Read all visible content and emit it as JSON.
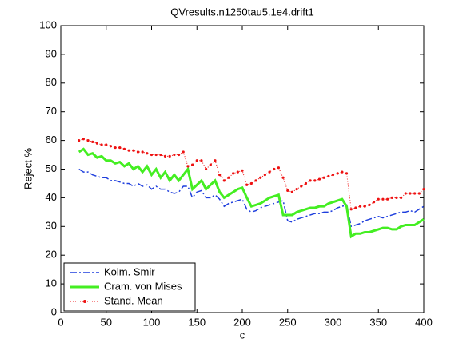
{
  "chart_data": {
    "type": "line",
    "title": "QVresults.n1250tau5.1e4.drift1",
    "x_label": "c",
    "y_label": "Reject %",
    "x": [
      20,
      25,
      30,
      35,
      40,
      45,
      50,
      55,
      60,
      65,
      70,
      75,
      80,
      85,
      90,
      95,
      100,
      105,
      110,
      115,
      120,
      125,
      130,
      135,
      140,
      145,
      150,
      155,
      160,
      165,
      170,
      175,
      180,
      185,
      190,
      195,
      200,
      205,
      210,
      215,
      220,
      225,
      230,
      235,
      240,
      245,
      250,
      255,
      260,
      265,
      270,
      275,
      280,
      285,
      290,
      295,
      300,
      305,
      310,
      315,
      320,
      325,
      330,
      335,
      340,
      345,
      350,
      355,
      360,
      365,
      370,
      375,
      380,
      385,
      390,
      395,
      400
    ],
    "series": [
      {
        "name": "Kolm. Smir",
        "color": "#1f3fdd",
        "style": "dashdot",
        "values": [
          50,
          49,
          49,
          48,
          47.5,
          47,
          47,
          46,
          46,
          45.5,
          45,
          45,
          44,
          45,
          44,
          44.5,
          43,
          44,
          43,
          43,
          42,
          41.5,
          42,
          44,
          44,
          40,
          42,
          42.5,
          40,
          40,
          41,
          39.5,
          37,
          38,
          38.5,
          39,
          39.5,
          36,
          35,
          35.5,
          36.5,
          37,
          37.5,
          38,
          38.5,
          39,
          32,
          31.5,
          32.5,
          33,
          33.5,
          34,
          34.5,
          34.5,
          35,
          35,
          35.5,
          36.5,
          37,
          37.5,
          30,
          30.5,
          31,
          32,
          32.5,
          33,
          33.5,
          33,
          33.5,
          34,
          34.5,
          35,
          35,
          35.5,
          35,
          36,
          37
        ]
      },
      {
        "name": "Cram. von Mises",
        "color": "#44ee22",
        "style": "solid",
        "values": [
          56,
          57,
          55,
          55.5,
          54,
          54.5,
          53,
          53,
          52,
          52.5,
          51,
          52,
          50,
          51,
          49,
          51,
          48,
          50,
          47,
          49,
          46,
          48,
          46,
          48,
          50,
          43,
          44.5,
          46,
          43,
          44.5,
          46,
          42,
          40,
          41,
          42,
          43,
          43.5,
          40,
          37,
          37.5,
          38,
          39,
          40,
          40.5,
          41,
          34,
          34,
          34,
          35,
          35.5,
          36,
          36.5,
          36.5,
          37,
          37,
          38,
          38.5,
          39,
          39.5,
          37,
          26.5,
          27.5,
          27.5,
          28,
          28,
          28.5,
          29,
          29.5,
          29.5,
          29,
          29,
          30,
          30.5,
          30.5,
          30.5,
          31.5,
          32.5
        ]
      },
      {
        "name": "Stand. Mean",
        "color": "#ee1111",
        "style": "dotted",
        "values": [
          60,
          60.5,
          60,
          59.5,
          59,
          58.5,
          58.5,
          58,
          57.5,
          57.5,
          57,
          56.5,
          56.5,
          56,
          56,
          55.5,
          55,
          55,
          55,
          54.5,
          54.5,
          55,
          55,
          56,
          51,
          51.5,
          53,
          53,
          50,
          51.5,
          53,
          48,
          46,
          47,
          48.5,
          49,
          49.5,
          44.5,
          45,
          46,
          47,
          48,
          49,
          50,
          50.5,
          47,
          42.5,
          42,
          43,
          44,
          45,
          46,
          46,
          46.5,
          47,
          47.5,
          48,
          48.5,
          49,
          48.5,
          36,
          36.5,
          37,
          37,
          37.5,
          38.5,
          39.5,
          39.5,
          39.5,
          40,
          40,
          40,
          41.5,
          41.5,
          41.5,
          41.5,
          43
        ]
      }
    ],
    "xlim": [
      0,
      400
    ],
    "xticks": [
      0,
      50,
      100,
      150,
      200,
      250,
      300,
      350,
      400
    ],
    "ylim": [
      0,
      100
    ],
    "yticks": [
      0,
      10,
      20,
      30,
      40,
      50,
      60,
      70,
      80,
      90,
      100
    ],
    "legend": "lower left"
  }
}
